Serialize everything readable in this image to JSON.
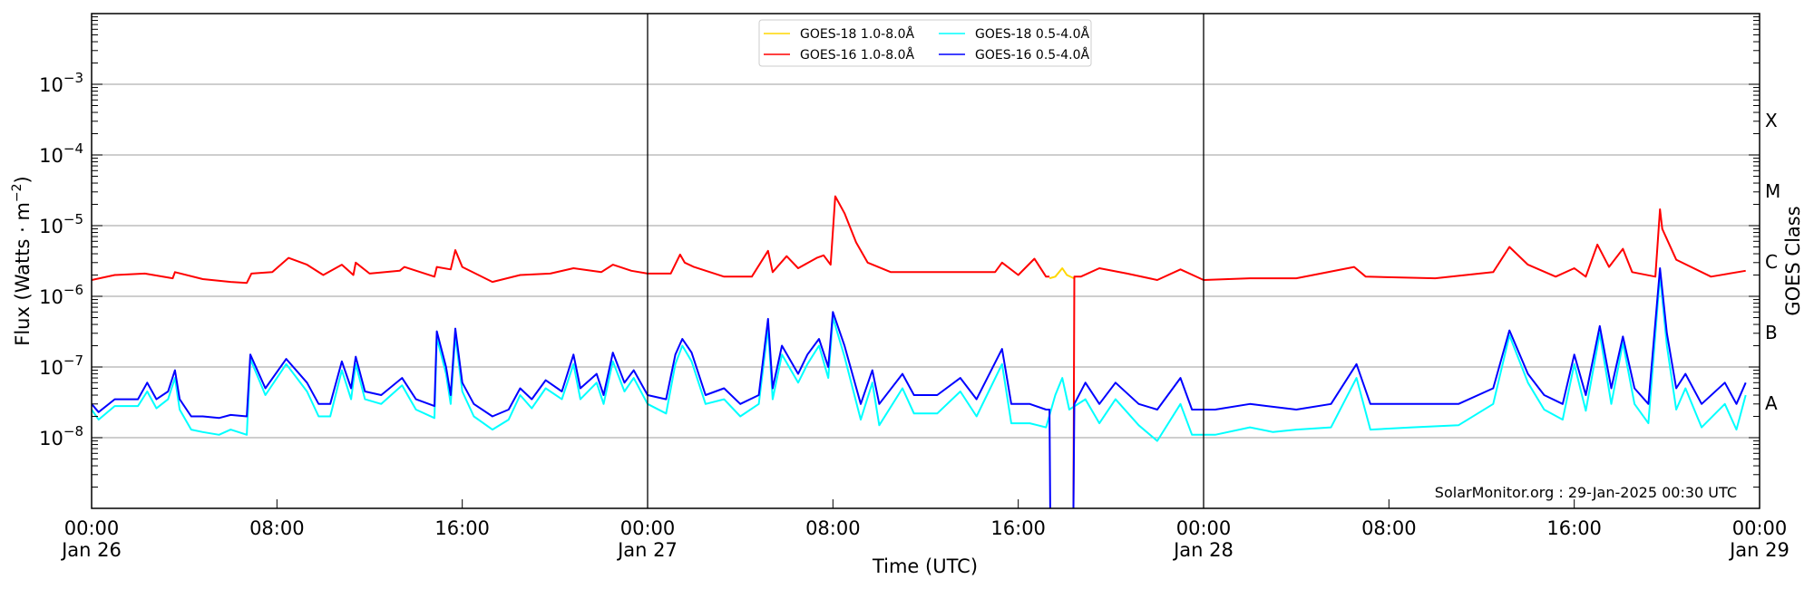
{
  "chart_data": {
    "type": "line",
    "xlabel": "Time (UTC)",
    "ylabel": "Flux (Watts · m⁻²)",
    "ylabel_base": "Flux (Watts · m",
    "ylabel_exp": "−2",
    "ylabel_tail": ")",
    "right_label": "GOES Class",
    "annotation": "SolarMonitor.org : 29-Jan-2025 00:30 UTC",
    "x_unit": "hours since Jan 26 00:00 UTC",
    "xlim": [
      0,
      72
    ],
    "ylim": [
      1e-09,
      0.01
    ],
    "yscale": "log",
    "grid": "horizontal at decades",
    "x_ticks": [
      {
        "h": 0,
        "time": "00:00",
        "date": "Jan 26"
      },
      {
        "h": 8,
        "time": "08:00",
        "date": ""
      },
      {
        "h": 16,
        "time": "16:00",
        "date": ""
      },
      {
        "h": 24,
        "time": "00:00",
        "date": "Jan 27"
      },
      {
        "h": 32,
        "time": "08:00",
        "date": ""
      },
      {
        "h": 40,
        "time": "16:00",
        "date": ""
      },
      {
        "h": 48,
        "time": "00:00",
        "date": "Jan 28"
      },
      {
        "h": 56,
        "time": "08:00",
        "date": ""
      },
      {
        "h": 64,
        "time": "16:00",
        "date": ""
      },
      {
        "h": 72,
        "time": "00:00",
        "date": "Jan 29"
      }
    ],
    "y_ticks": [
      {
        "exp": -3,
        "base": "10",
        "sup": "−3"
      },
      {
        "exp": -4,
        "base": "10",
        "sup": "−4"
      },
      {
        "exp": -5,
        "base": "10",
        "sup": "−5"
      },
      {
        "exp": -6,
        "base": "10",
        "sup": "−6"
      },
      {
        "exp": -7,
        "base": "10",
        "sup": "−7"
      },
      {
        "exp": -8,
        "base": "10",
        "sup": "−8"
      }
    ],
    "day_separators": [
      24,
      48
    ],
    "goes_classes": [
      {
        "label": "X",
        "lower": 0.0001
      },
      {
        "label": "M",
        "lower": 1e-05
      },
      {
        "label": "C",
        "lower": 1e-06
      },
      {
        "label": "B",
        "lower": 1e-07
      },
      {
        "label": "A",
        "lower": 1e-08
      }
    ],
    "legend": {
      "placement": "top-center",
      "entries": [
        {
          "label": "GOES-18 1.0-8.0Å",
          "color": "#ffd700"
        },
        {
          "label": "GOES-18 0.5-4.0Å",
          "color": "#00ffff"
        },
        {
          "label": "GOES-16 1.0-8.0Å",
          "color": "#ff0000"
        },
        {
          "label": "GOES-16 0.5-4.0Å",
          "color": "#0000ff"
        }
      ]
    },
    "series": [
      {
        "name": "GOES-18 1.0-8.0Å",
        "color": "#ffd700",
        "x": [
          41.35,
          41.6,
          41.9,
          42.1,
          42.4
        ],
        "y": [
          1.8e-06,
          1.9e-06,
          2.5e-06,
          2e-06,
          1.8e-06
        ]
      },
      {
        "name": "GOES-18 0.5-4.0Å",
        "color": "#00ffff",
        "x": [
          0,
          0.3,
          1,
          2,
          2.4,
          2.8,
          3.3,
          3.6,
          3.8,
          4.3,
          4.8,
          5.5,
          6,
          6.7,
          6.85,
          7.5,
          8.4,
          9.3,
          9.8,
          10.3,
          10.8,
          11.2,
          11.4,
          11.8,
          12.5,
          13.4,
          14,
          14.8,
          14.9,
          15.3,
          15.5,
          15.7,
          16,
          16.5,
          17.3,
          18,
          18.5,
          19,
          19.6,
          20.3,
          20.8,
          21.1,
          21.8,
          22.1,
          22.5,
          23,
          23.4,
          24,
          24.8,
          25.2,
          25.5,
          25.9,
          26.5,
          27.3,
          28,
          28.8,
          29.2,
          29.4,
          29.8,
          30.5,
          30.9,
          31.4,
          31.8,
          32,
          32.5,
          33.2,
          33.7,
          34,
          35,
          35.5,
          36.5,
          37.5,
          38.2,
          39.3,
          39.7,
          40.5,
          41.2,
          41.6,
          41.9,
          42.2,
          42.9,
          43.5,
          44.2,
          45.2,
          46,
          47,
          47.5,
          48.5,
          50,
          51,
          52,
          53.5,
          54.6,
          55.2,
          57,
          59,
          60.5,
          61.2,
          62,
          62.7,
          63.5,
          64,
          64.5,
          65.1,
          65.6,
          66.1,
          66.6,
          67.2,
          67.7,
          68,
          68.4,
          68.8,
          69.5,
          70.5,
          71,
          71.4
        ],
        "y": [
          2.5e-08,
          1.8e-08,
          2.8e-08,
          2.8e-08,
          4.5e-08,
          2.6e-08,
          3.5e-08,
          7e-08,
          2.5e-08,
          1.3e-08,
          1.2e-08,
          1.1e-08,
          1.3e-08,
          1.1e-08,
          1.3e-07,
          4e-08,
          1.1e-07,
          4.5e-08,
          2e-08,
          2e-08,
          9e-08,
          3.5e-08,
          1.1e-07,
          3.5e-08,
          3e-08,
          5.5e-08,
          2.5e-08,
          1.9e-08,
          2.6e-07,
          8e-08,
          3e-08,
          2.8e-07,
          4.5e-08,
          2e-08,
          1.3e-08,
          1.8e-08,
          4e-08,
          2.6e-08,
          5e-08,
          3.5e-08,
          1.1e-07,
          3.5e-08,
          6e-08,
          3e-08,
          1.2e-07,
          4.5e-08,
          7e-08,
          3e-08,
          2.2e-08,
          1.1e-07,
          2e-07,
          1.2e-07,
          3e-08,
          3.5e-08,
          2e-08,
          3e-08,
          3.6e-07,
          3.5e-08,
          1.5e-07,
          6e-08,
          1.1e-07,
          2e-07,
          7e-08,
          5e-07,
          1.4e-07,
          1.8e-08,
          6e-08,
          1.5e-08,
          5e-08,
          2.2e-08,
          2.2e-08,
          4.5e-08,
          2e-08,
          1.1e-07,
          1.6e-08,
          1.6e-08,
          1.4e-08,
          4e-08,
          7e-08,
          2.5e-08,
          3.5e-08,
          1.6e-08,
          3.5e-08,
          1.5e-08,
          9e-09,
          3e-08,
          1.1e-08,
          1.1e-08,
          1.4e-08,
          1.2e-08,
          1.3e-08,
          1.4e-08,
          7e-08,
          1.3e-08,
          1.4e-08,
          1.5e-08,
          3e-08,
          2.8e-07,
          6e-08,
          2.5e-08,
          1.8e-08,
          1.1e-07,
          2.4e-08,
          3e-07,
          3e-08,
          2.2e-07,
          3e-08,
          1.6e-08,
          2e-06,
          2e-07,
          2.5e-08,
          5e-08,
          1.4e-08,
          3e-08,
          1.3e-08,
          4e-08
        ]
      },
      {
        "name": "GOES-16 1.0-8.0Å",
        "color": "#ff0000",
        "x": [
          0,
          1,
          2.3,
          3.5,
          3.6,
          4.8,
          6,
          6.7,
          6.9,
          7.8,
          8.5,
          9.3,
          10,
          10.8,
          11.3,
          11.4,
          12,
          13.3,
          13.5,
          14.8,
          14.9,
          15.5,
          15.7,
          16,
          17.3,
          18.5,
          19.8,
          20.8,
          22,
          22.5,
          23.3,
          24,
          25,
          25.4,
          25.6,
          26,
          27.3,
          28.5,
          29.2,
          29.4,
          30,
          30.5,
          31.3,
          31.6,
          31.9,
          32.1,
          32.5,
          33,
          33.5,
          34.5,
          36,
          37.5,
          39,
          39.3,
          40,
          40.7,
          41.2,
          41.35,
          null,
          42.38,
          42.42,
          42.7,
          43.5,
          44.7,
          46,
          47,
          48,
          50,
          52,
          54.5,
          55,
          58,
          60.5,
          61.2,
          62,
          63.2,
          64,
          64.5,
          65,
          65.5,
          66.1,
          66.5,
          67.5,
          67.7,
          67.8,
          68.4,
          69.9,
          71.4
        ],
        "y": [
          1.7e-06,
          2e-06,
          2.1e-06,
          1.8e-06,
          2.2e-06,
          1.75e-06,
          1.6e-06,
          1.55e-06,
          2.1e-06,
          2.2e-06,
          3.5e-06,
          2.8e-06,
          2e-06,
          2.8e-06,
          2e-06,
          3e-06,
          2.1e-06,
          2.3e-06,
          2.6e-06,
          1.9e-06,
          2.6e-06,
          2.4e-06,
          4.5e-06,
          2.6e-06,
          1.6e-06,
          2e-06,
          2.1e-06,
          2.5e-06,
          2.2e-06,
          2.8e-06,
          2.3e-06,
          2.1e-06,
          2.1e-06,
          3.9e-06,
          3e-06,
          2.6e-06,
          1.9e-06,
          1.9e-06,
          4.4e-06,
          2.2e-06,
          3.7e-06,
          2.5e-06,
          3.5e-06,
          3.8e-06,
          2.8e-06,
          2.6e-05,
          1.5e-05,
          5.8e-06,
          3e-06,
          2.2e-06,
          2.2e-06,
          2.2e-06,
          2.2e-06,
          3e-06,
          2e-06,
          3.4e-06,
          1.9e-06,
          1.9e-06,
          null,
          1e-09,
          1.9e-06,
          1.9e-06,
          2.5e-06,
          2.1e-06,
          1.7e-06,
          2.4e-06,
          1.7e-06,
          1.8e-06,
          1.8e-06,
          2.6e-06,
          1.9e-06,
          1.8e-06,
          2.2e-06,
          5e-06,
          2.8e-06,
          1.9e-06,
          2.5e-06,
          1.9e-06,
          5.4e-06,
          2.6e-06,
          4.7e-06,
          2.2e-06,
          1.9e-06,
          1.7e-05,
          9e-06,
          3.3e-06,
          1.9e-06,
          2.3e-06
        ]
      },
      {
        "name": "GOES-16 0.5-4.0Å",
        "color": "#0000ff",
        "x": [
          0,
          0.3,
          1,
          2,
          2.4,
          2.8,
          3.3,
          3.6,
          3.8,
          4.3,
          4.8,
          5.5,
          6,
          6.7,
          6.85,
          7.5,
          8.4,
          9.3,
          9.8,
          10.3,
          10.8,
          11.2,
          11.4,
          11.8,
          12.5,
          13.4,
          14,
          14.8,
          14.9,
          15.3,
          15.5,
          15.7,
          16,
          16.5,
          17.3,
          18,
          18.5,
          19,
          19.6,
          20.3,
          20.8,
          21.1,
          21.8,
          22.1,
          22.5,
          23,
          23.4,
          24,
          24.8,
          25.2,
          25.5,
          25.9,
          26.5,
          27.3,
          28,
          28.8,
          29.2,
          29.4,
          29.8,
          30.5,
          30.9,
          31.4,
          31.8,
          32,
          32.5,
          33.2,
          33.7,
          34,
          35,
          35.5,
          36.5,
          37.5,
          38.2,
          39.3,
          39.7,
          40.5,
          41.2,
          41.35,
          41.38,
          null,
          42.38,
          42.42,
          42.9,
          43.5,
          44.2,
          45.2,
          46,
          47,
          47.5,
          48.5,
          50,
          52,
          53.5,
          54.6,
          55.2,
          57,
          59,
          60.5,
          61.2,
          62,
          62.7,
          63.5,
          64,
          64.5,
          65.1,
          65.6,
          66.1,
          66.6,
          67.2,
          67.7,
          68,
          68.4,
          68.8,
          69.5,
          70.5,
          71,
          71.4
        ],
        "y": [
          3e-08,
          2.3e-08,
          3.5e-08,
          3.5e-08,
          6e-08,
          3.5e-08,
          4.5e-08,
          9e-08,
          3.5e-08,
          2e-08,
          2e-08,
          1.9e-08,
          2.1e-08,
          2e-08,
          1.5e-07,
          5e-08,
          1.3e-07,
          6e-08,
          3e-08,
          3e-08,
          1.2e-07,
          5e-08,
          1.4e-07,
          4.5e-08,
          4e-08,
          7e-08,
          3.5e-08,
          2.8e-08,
          3.2e-07,
          1e-07,
          4e-08,
          3.5e-07,
          6e-08,
          3e-08,
          2e-08,
          2.5e-08,
          5e-08,
          3.5e-08,
          6.5e-08,
          4.5e-08,
          1.5e-07,
          5e-08,
          8e-08,
          4e-08,
          1.6e-07,
          6e-08,
          9e-08,
          4e-08,
          3.5e-08,
          1.5e-07,
          2.5e-07,
          1.6e-07,
          4e-08,
          5e-08,
          3e-08,
          4e-08,
          4.8e-07,
          5e-08,
          2e-07,
          8e-08,
          1.5e-07,
          2.5e-07,
          1e-07,
          6e-07,
          2e-07,
          3e-08,
          9e-08,
          3e-08,
          8e-08,
          4e-08,
          4e-08,
          7e-08,
          3.5e-08,
          1.8e-07,
          3e-08,
          3e-08,
          2.5e-08,
          2.5e-08,
          1e-09,
          null,
          1e-09,
          3e-08,
          6e-08,
          3e-08,
          6e-08,
          3e-08,
          2.5e-08,
          7e-08,
          2.5e-08,
          2.5e-08,
          3e-08,
          2.5e-08,
          3e-08,
          1.1e-07,
          3e-08,
          3e-08,
          3e-08,
          5e-08,
          3.3e-07,
          8e-08,
          4e-08,
          3e-08,
          1.5e-07,
          4e-08,
          3.8e-07,
          5e-08,
          2.7e-07,
          5e-08,
          3e-08,
          2.5e-06,
          3e-07,
          5e-08,
          8e-08,
          3e-08,
          6e-08,
          3e-08,
          6e-08
        ]
      }
    ]
  }
}
